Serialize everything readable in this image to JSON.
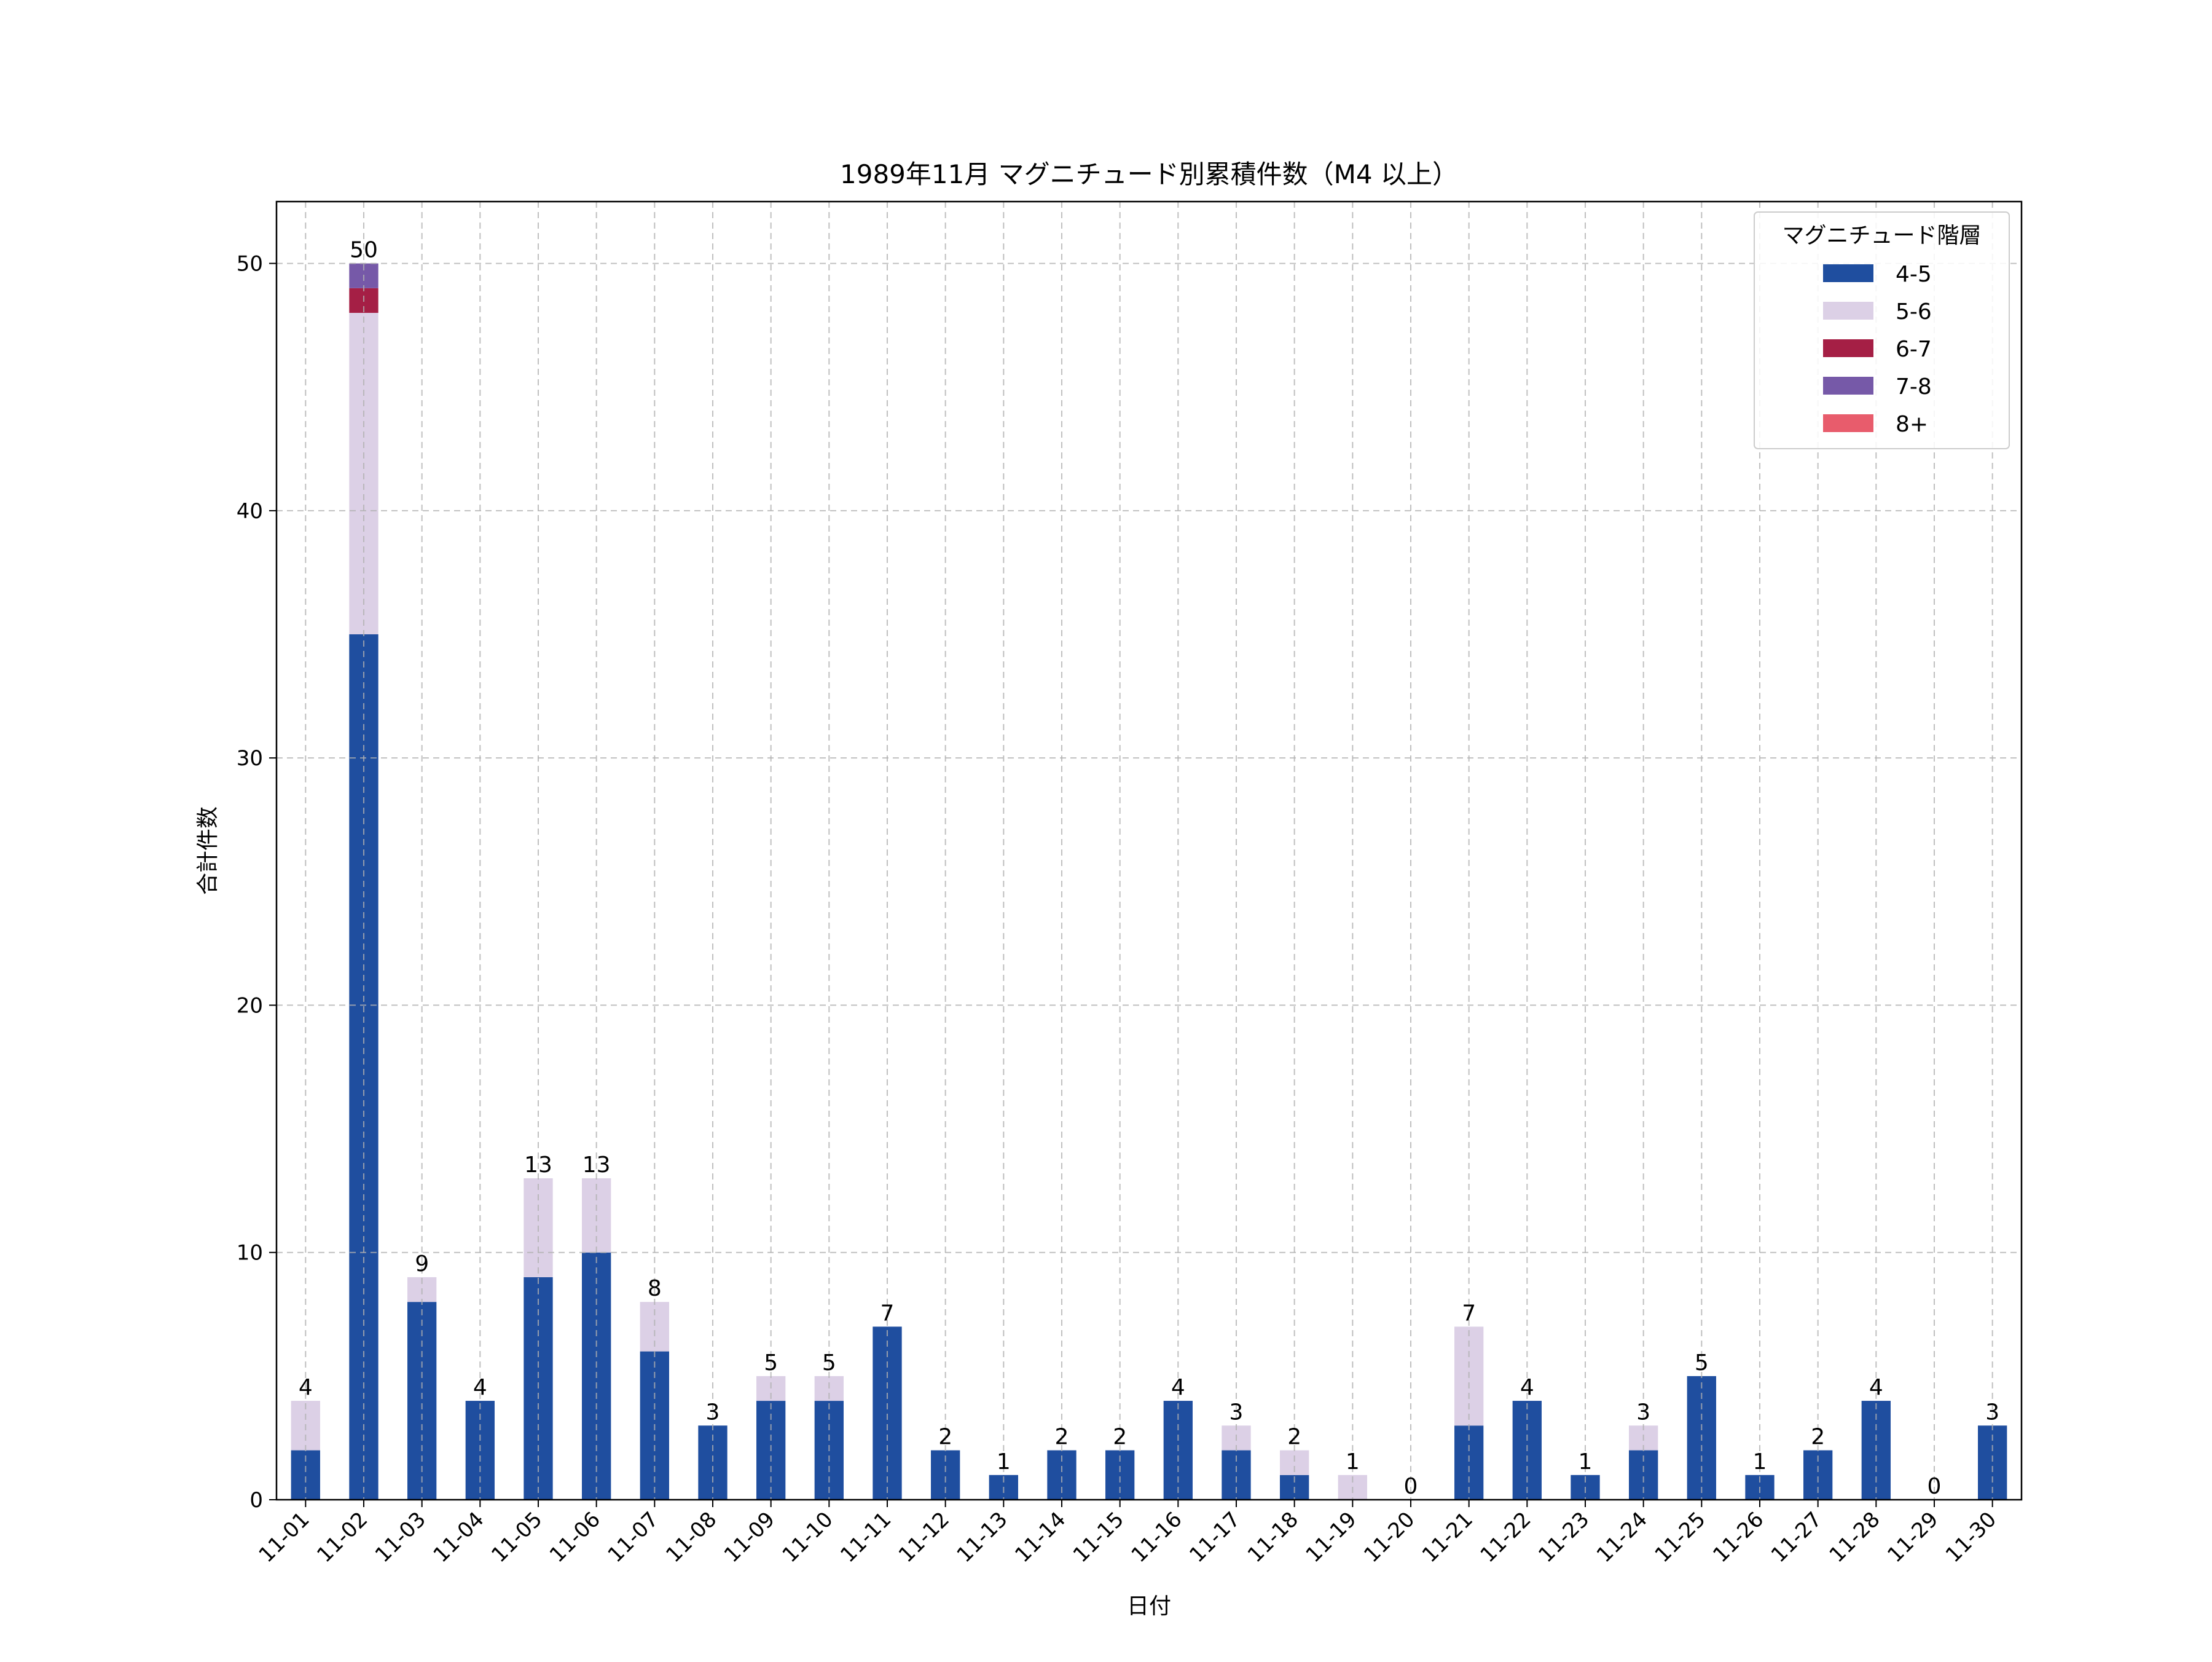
{
  "chart_data": {
    "type": "bar",
    "stacked": true,
    "title": "1989年11月 マグニチュード別累積件数（M4 以上）",
    "xlabel": "日付",
    "ylabel": "合計件数",
    "ylim": [
      0,
      52.5
    ],
    "yticks": [
      0,
      10,
      20,
      30,
      40,
      50
    ],
    "grid": true,
    "legend": {
      "title": "マグニチュード階層",
      "position": "top-right"
    },
    "categories": [
      "11-01",
      "11-02",
      "11-03",
      "11-04",
      "11-05",
      "11-06",
      "11-07",
      "11-08",
      "11-09",
      "11-10",
      "11-11",
      "11-12",
      "11-13",
      "11-14",
      "11-15",
      "11-16",
      "11-17",
      "11-18",
      "11-19",
      "11-20",
      "11-21",
      "11-22",
      "11-23",
      "11-24",
      "11-25",
      "11-26",
      "11-27",
      "11-28",
      "11-29",
      "11-30"
    ],
    "series": [
      {
        "name": "4-5",
        "color": "#1f4e9f",
        "values": [
          2,
          35,
          8,
          4,
          9,
          10,
          6,
          3,
          4,
          4,
          7,
          2,
          1,
          2,
          2,
          4,
          2,
          1,
          0,
          0,
          3,
          4,
          1,
          2,
          5,
          1,
          2,
          4,
          0,
          3
        ]
      },
      {
        "name": "5-6",
        "color": "#dcd0e6",
        "values": [
          2,
          13,
          1,
          0,
          4,
          3,
          2,
          0,
          1,
          1,
          0,
          0,
          0,
          0,
          0,
          0,
          1,
          1,
          1,
          0,
          4,
          0,
          0,
          1,
          0,
          0,
          0,
          0,
          0,
          0
        ]
      },
      {
        "name": "6-7",
        "color": "#a51f45",
        "values": [
          0,
          1,
          0,
          0,
          0,
          0,
          0,
          0,
          0,
          0,
          0,
          0,
          0,
          0,
          0,
          0,
          0,
          0,
          0,
          0,
          0,
          0,
          0,
          0,
          0,
          0,
          0,
          0,
          0,
          0
        ]
      },
      {
        "name": "7-8",
        "color": "#7659a8",
        "values": [
          0,
          1,
          0,
          0,
          0,
          0,
          0,
          0,
          0,
          0,
          0,
          0,
          0,
          0,
          0,
          0,
          0,
          0,
          0,
          0,
          0,
          0,
          0,
          0,
          0,
          0,
          0,
          0,
          0,
          0
        ]
      },
      {
        "name": "8+",
        "color": "#e85c6c",
        "values": [
          0,
          0,
          0,
          0,
          0,
          0,
          0,
          0,
          0,
          0,
          0,
          0,
          0,
          0,
          0,
          0,
          0,
          0,
          0,
          0,
          0,
          0,
          0,
          0,
          0,
          0,
          0,
          0,
          0,
          0
        ]
      }
    ],
    "totals": [
      4,
      50,
      9,
      4,
      13,
      13,
      8,
      3,
      5,
      5,
      7,
      2,
      1,
      2,
      2,
      4,
      3,
      2,
      1,
      0,
      7,
      4,
      1,
      3,
      5,
      1,
      2,
      4,
      0,
      3
    ]
  }
}
